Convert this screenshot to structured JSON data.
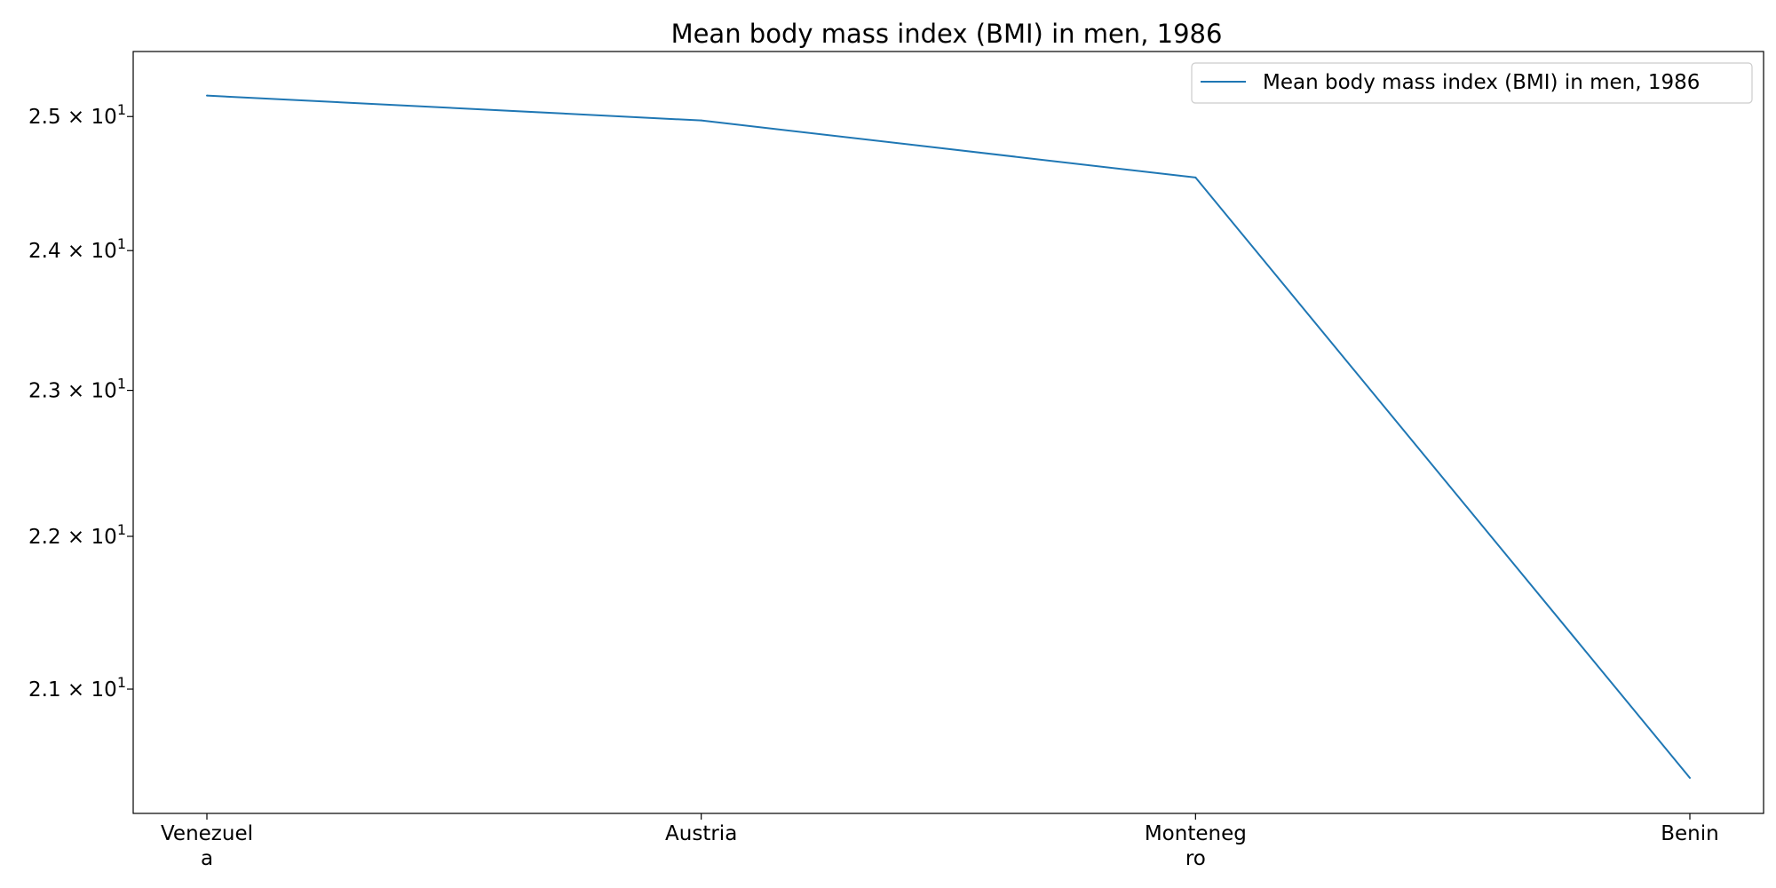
{
  "chart_data": {
    "type": "line",
    "title": "Mean body mass index (BMI) in men, 1986",
    "xlabel": "",
    "ylabel": "",
    "categories": [
      "Venezuela",
      "Austria",
      "Montenegro",
      "Benin"
    ],
    "category_labels": [
      [
        "Venezuel",
        "a"
      ],
      [
        "Austria"
      ],
      [
        "Monteneg",
        "ro"
      ],
      [
        "Benin"
      ]
    ],
    "series": [
      {
        "name": "Mean body mass index (BMI) in men, 1986",
        "values": [
          25.16,
          24.97,
          24.54,
          20.44
        ],
        "color": "#1f77b4"
      }
    ],
    "y_scale": "log",
    "ylim": [
      20.22,
      25.5
    ],
    "y_ticks": [
      {
        "value": 21,
        "mantissa": "2.1",
        "base": "10",
        "exp": "1"
      },
      {
        "value": 22,
        "mantissa": "2.2",
        "base": "10",
        "exp": "1"
      },
      {
        "value": 23,
        "mantissa": "2.3",
        "base": "10",
        "exp": "1"
      },
      {
        "value": 24,
        "mantissa": "2.4",
        "base": "10",
        "exp": "1"
      },
      {
        "value": 25,
        "mantissa": "2.5",
        "base": "10",
        "exp": "1"
      }
    ],
    "grid": false,
    "legend_position": "top-right"
  }
}
